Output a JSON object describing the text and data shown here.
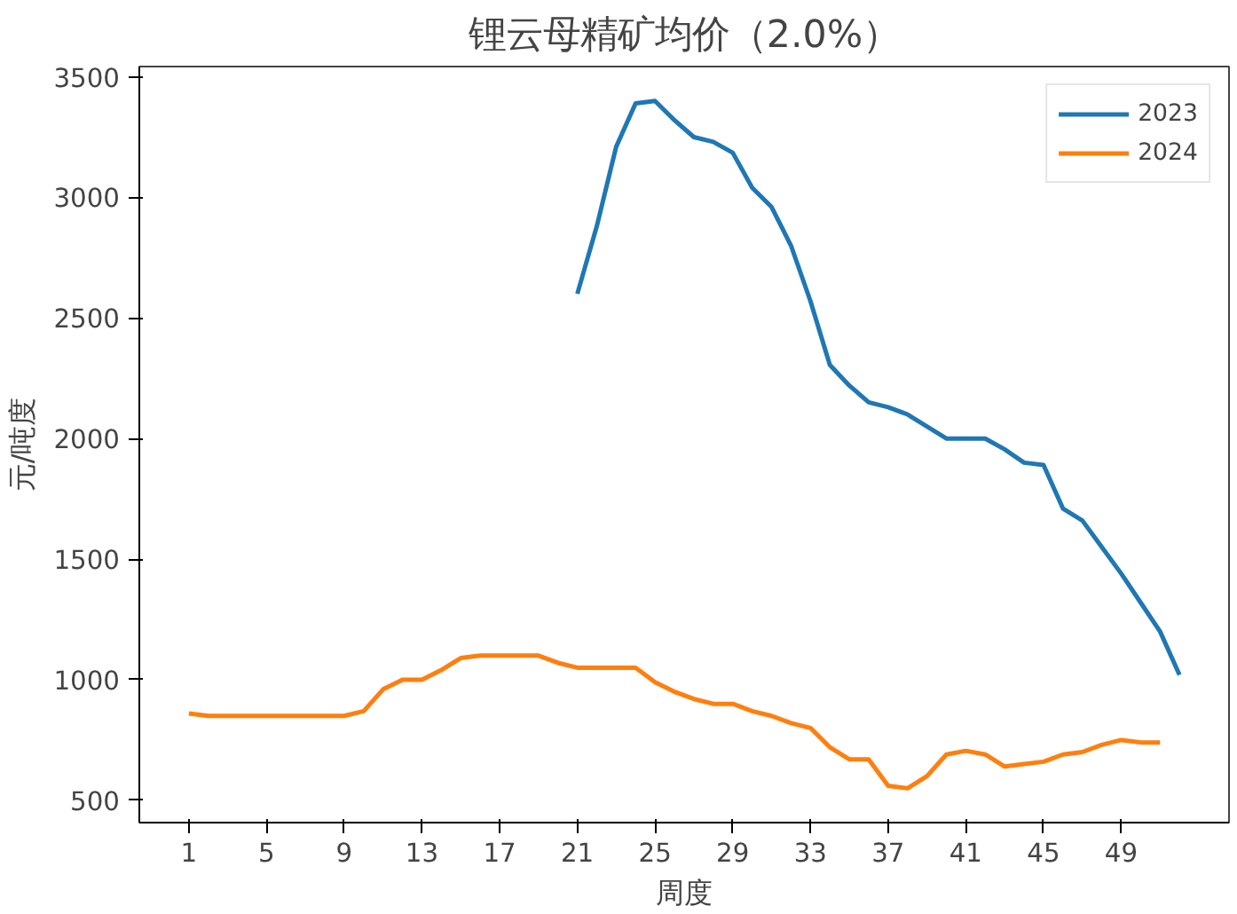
{
  "chart_data": {
    "type": "line",
    "title": "锂云母精矿均价（2.0%）",
    "xlabel": "周度",
    "ylabel": "元/吨度",
    "xlim": [
      -1.55,
      54.55
    ],
    "ylim": [
      407.5,
      3542.5
    ],
    "xticks": [
      1,
      5,
      9,
      13,
      17,
      21,
      25,
      29,
      33,
      37,
      41,
      45,
      49
    ],
    "yticks": [
      500,
      1000,
      1500,
      2000,
      2500,
      3000,
      3500
    ],
    "legend": "top right",
    "grid": false,
    "series": [
      {
        "name": "2023",
        "color": "#1f77b4",
        "x": [
          21,
          22,
          23,
          24,
          25,
          26,
          27,
          28,
          29,
          30,
          31,
          32,
          33,
          34,
          35,
          36,
          37,
          38,
          39,
          40,
          41,
          42,
          43,
          44,
          45,
          46,
          47,
          48,
          49,
          50,
          51,
          52
        ],
        "values": [
          2600,
          2880,
          3210,
          3390,
          3400,
          3320,
          3250,
          3230,
          3185,
          3040,
          2960,
          2800,
          2570,
          2305,
          2220,
          2150,
          2130,
          2100,
          2050,
          2000,
          2000,
          2000,
          1955,
          1900,
          1890,
          1710,
          1660,
          1550,
          1440,
          1320,
          1200,
          1020
        ]
      },
      {
        "name": "2024",
        "color": "#ff7f0e",
        "x": [
          1,
          2,
          3,
          4,
          5,
          6,
          7,
          8,
          9,
          10,
          11,
          12,
          13,
          14,
          15,
          16,
          17,
          18,
          19,
          20,
          21,
          22,
          23,
          24,
          25,
          26,
          27,
          28,
          29,
          30,
          31,
          32,
          33,
          34,
          35,
          36,
          37,
          38,
          39,
          40,
          41,
          42,
          43,
          44,
          45,
          46,
          47,
          48,
          49,
          50,
          51
        ],
        "values": [
          860,
          850,
          850,
          850,
          850,
          850,
          850,
          850,
          850,
          870,
          960,
          1000,
          1000,
          1040,
          1090,
          1100,
          1100,
          1100,
          1100,
          1070,
          1050,
          1050,
          1050,
          1050,
          990,
          950,
          920,
          900,
          900,
          870,
          850,
          820,
          800,
          720,
          670,
          670,
          560,
          550,
          600,
          690,
          705,
          690,
          640,
          650,
          660,
          690,
          700,
          730,
          750,
          740,
          740
        ]
      }
    ]
  }
}
